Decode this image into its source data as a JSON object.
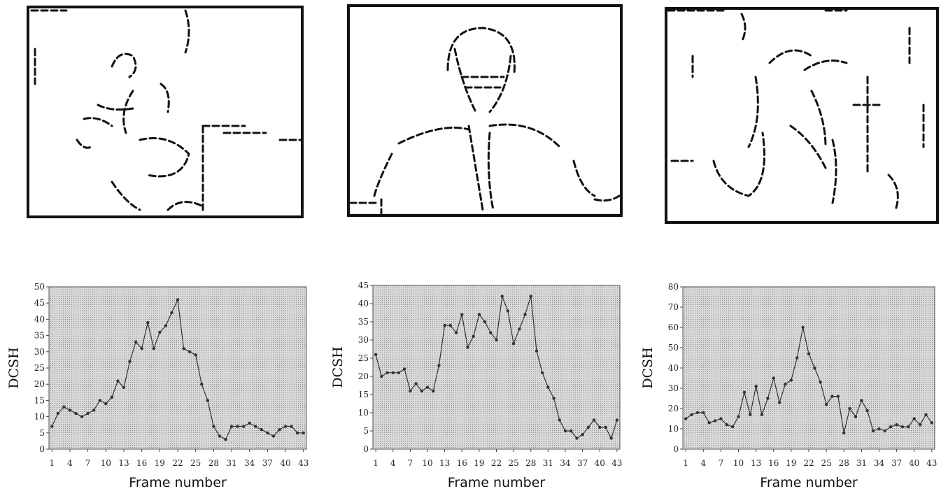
{
  "chart_data": [
    {
      "type": "line",
      "y_label": "DCSH",
      "x_label": "Frame number",
      "color": "#333333",
      "x": [
        1,
        2,
        3,
        4,
        5,
        6,
        7,
        8,
        9,
        10,
        11,
        12,
        13,
        14,
        15,
        16,
        17,
        18,
        19,
        20,
        21,
        22,
        23,
        24,
        25,
        26,
        27,
        28,
        29,
        30,
        31,
        32,
        33,
        34,
        35,
        36,
        37,
        38,
        39,
        40,
        41,
        42,
        43
      ],
      "values": [
        7,
        11,
        13,
        12,
        11,
        10,
        11,
        12,
        15,
        14,
        16,
        21,
        19,
        27,
        33,
        31,
        39,
        31,
        36,
        38,
        42,
        46,
        31,
        30,
        29,
        20,
        15,
        7,
        4,
        3,
        7,
        7,
        7,
        8,
        7,
        6,
        5,
        4,
        6,
        7,
        7,
        5,
        5
      ],
      "xlim": [
        0.5,
        43.5
      ],
      "xticks": [
        1,
        4,
        7,
        10,
        13,
        16,
        19,
        22,
        25,
        28,
        31,
        34,
        37,
        40,
        43
      ],
      "ylim": [
        0,
        50
      ],
      "yticks": [
        0,
        5,
        10,
        15,
        20,
        25,
        30,
        35,
        40,
        45,
        50
      ]
    },
    {
      "type": "line",
      "y_label": "DCSH",
      "x_label": "Frame number",
      "color": "#333333",
      "x": [
        1,
        2,
        3,
        4,
        5,
        6,
        7,
        8,
        9,
        10,
        11,
        12,
        13,
        14,
        15,
        16,
        17,
        18,
        19,
        20,
        21,
        22,
        23,
        24,
        25,
        26,
        27,
        28,
        29,
        30,
        31,
        32,
        33,
        34,
        35,
        36,
        37,
        38,
        39,
        40,
        41,
        42,
        43
      ],
      "values": [
        26,
        20,
        21,
        21,
        21,
        22,
        16,
        18,
        16,
        17,
        16,
        23,
        34,
        34,
        32,
        37,
        28,
        31,
        37,
        35,
        32,
        30,
        42,
        38,
        29,
        33,
        37,
        42,
        27,
        21,
        17,
        14,
        8,
        5,
        5,
        3,
        4,
        6,
        8,
        6,
        6,
        3,
        8
      ],
      "xlim": [
        0.5,
        43.5
      ],
      "xticks": [
        1,
        4,
        7,
        10,
        13,
        16,
        19,
        22,
        25,
        28,
        31,
        34,
        37,
        40,
        43
      ],
      "ylim": [
        0,
        45
      ],
      "yticks": [
        0,
        5,
        10,
        15,
        20,
        25,
        30,
        35,
        40,
        45
      ]
    },
    {
      "type": "line",
      "y_label": "DCSH",
      "x_label": "Frame number",
      "color": "#333333",
      "x": [
        1,
        2,
        3,
        4,
        5,
        6,
        7,
        8,
        9,
        10,
        11,
        12,
        13,
        14,
        15,
        16,
        17,
        18,
        19,
        20,
        21,
        22,
        23,
        24,
        25,
        26,
        27,
        28,
        29,
        30,
        31,
        32,
        33,
        34,
        35,
        36,
        37,
        38,
        39,
        40,
        41,
        42,
        43
      ],
      "values": [
        15,
        17,
        18,
        18,
        13,
        14,
        15,
        12,
        11,
        16,
        28,
        17,
        31,
        17,
        25,
        35,
        23,
        32,
        34,
        45,
        60,
        47,
        40,
        33,
        22,
        26,
        26,
        8,
        20,
        16,
        24,
        19,
        9,
        10,
        9,
        11,
        12,
        11,
        11,
        15,
        12,
        17,
        13
      ],
      "xlim": [
        0.5,
        43.5
      ],
      "xticks": [
        1,
        4,
        7,
        10,
        13,
        16,
        19,
        22,
        25,
        28,
        31,
        34,
        37,
        40,
        43
      ],
      "ylim": [
        0,
        80
      ],
      "yticks": [
        0,
        10,
        20,
        30,
        40,
        50,
        60,
        70,
        80
      ]
    }
  ]
}
